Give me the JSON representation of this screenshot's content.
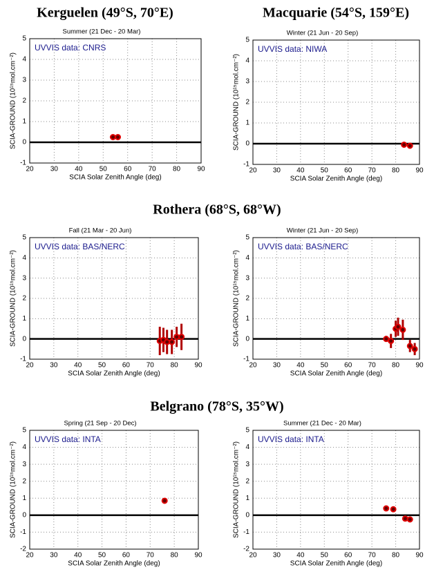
{
  "headings": [
    "Kerguelen (49°S, 70°E)",
    "Macquarie (54°S, 159°E)",
    "Rothera (68°S, 68°W)",
    "Belgrano (78°S, 35°W)"
  ],
  "chart_data": [
    {
      "type": "scatter",
      "title": "Summer (21 Dec - 20 Mar)",
      "annotation": "UVVIS data: CNRS",
      "xlabel": "SCIA Solar Zenith Angle (deg)",
      "ylabel": "SCIA-GROUND (10¹⁵mol.cm⁻²)",
      "xlim": [
        20,
        90
      ],
      "xticks": [
        20,
        30,
        40,
        50,
        60,
        70,
        80,
        90
      ],
      "ylim": [
        -1,
        5
      ],
      "yticks": [
        -1,
        0,
        1,
        2,
        3,
        4,
        5
      ],
      "grid": true,
      "reference_line": 0,
      "color": "#e00000",
      "x": [
        54,
        56
      ],
      "values": [
        0.25,
        0.25
      ],
      "errors": [
        0.1,
        0.1
      ]
    },
    {
      "type": "scatter",
      "title": "Winter (21 Jun - 20 Sep)",
      "annotation": "UVVIS data: NIWA",
      "xlabel": "SCIA Solar Zenith Angle (deg)",
      "ylabel": "SCIA-GROUND (10¹⁵mol.cm⁻²)",
      "xlim": [
        20,
        90
      ],
      "xticks": [
        20,
        30,
        40,
        50,
        60,
        70,
        80,
        90
      ],
      "ylim": [
        -1,
        5
      ],
      "yticks": [
        -1,
        0,
        1,
        2,
        3,
        4,
        5
      ],
      "grid": true,
      "reference_line": 0,
      "color": "#e00000",
      "x": [
        83.5,
        86
      ],
      "values": [
        -0.05,
        -0.1
      ],
      "errors": [
        0.05,
        0.05
      ]
    },
    {
      "type": "scatter",
      "title": "Fall (21 Mar - 20 Jun)",
      "annotation": "UVVIS data: BAS/NERC",
      "xlabel": "SCIA Solar Zenith Angle (deg)",
      "ylabel": "SCIA-GROUND (10¹⁵mol.cm⁻²)",
      "xlim": [
        20,
        90
      ],
      "xticks": [
        20,
        30,
        40,
        50,
        60,
        70,
        80,
        90
      ],
      "ylim": [
        -1,
        5
      ],
      "yticks": [
        -1,
        0,
        1,
        2,
        3,
        4,
        5
      ],
      "grid": true,
      "reference_line": 0,
      "color": "#e00000",
      "x": [
        74,
        75.5,
        77,
        79,
        81,
        83
      ],
      "values": [
        -0.1,
        -0.05,
        -0.15,
        -0.15,
        0.1,
        0.1
      ],
      "errors": [
        0.7,
        0.6,
        0.6,
        0.6,
        0.5,
        0.65
      ]
    },
    {
      "type": "scatter",
      "title": "Winter (21 Jun - 20 Sep)",
      "annotation": "UVVIS data: BAS/NERC",
      "xlabel": "SCIA Solar Zenith Angle (deg)",
      "ylabel": "SCIA-GROUND (10¹⁵mol.cm⁻²)",
      "xlim": [
        20,
        90
      ],
      "xticks": [
        20,
        30,
        40,
        50,
        60,
        70,
        80,
        90
      ],
      "ylim": [
        -1,
        5
      ],
      "yticks": [
        -1,
        0,
        1,
        2,
        3,
        4,
        5
      ],
      "grid": true,
      "reference_line": 0,
      "color": "#e00000",
      "x": [
        76,
        78,
        80,
        81,
        83,
        86,
        88
      ],
      "values": [
        0,
        -0.1,
        0.5,
        0.6,
        0.45,
        -0.35,
        -0.5
      ],
      "errors": [
        0.15,
        0.35,
        0.4,
        0.45,
        0.5,
        0.3,
        0.3
      ]
    },
    {
      "type": "scatter",
      "title": "Spring (21 Sep - 20 Dec)",
      "annotation": "UVVIS data: INTA",
      "xlabel": "SCIA Solar Zenith Angle (deg)",
      "ylabel": "SCIA-GROUND (10¹⁵mol.cm⁻²)",
      "xlim": [
        20,
        90
      ],
      "xticks": [
        20,
        30,
        40,
        50,
        60,
        70,
        80,
        90
      ],
      "ylim": [
        -2,
        5
      ],
      "yticks": [
        -2,
        -1,
        0,
        1,
        2,
        3,
        4,
        5
      ],
      "grid": true,
      "reference_line": 0,
      "color": "#e00000",
      "x": [
        76
      ],
      "values": [
        0.85
      ],
      "errors": [
        0.05
      ]
    },
    {
      "type": "scatter",
      "title": "Summer (21 Dec - 20 Mar)",
      "annotation": "UVVIS data: INTA",
      "xlabel": "SCIA Solar Zenith Angle (deg)",
      "ylabel": "SCIA-GROUND (10¹⁵mol.cm⁻²)",
      "xlim": [
        20,
        90
      ],
      "xticks": [
        20,
        30,
        40,
        50,
        60,
        70,
        80,
        90
      ],
      "ylim": [
        -2,
        5
      ],
      "yticks": [
        -2,
        -1,
        0,
        1,
        2,
        3,
        4,
        5
      ],
      "grid": true,
      "reference_line": 0,
      "color": "#e00000",
      "x": [
        76,
        79,
        84,
        86
      ],
      "values": [
        0.4,
        0.35,
        -0.2,
        -0.25
      ],
      "errors": [
        0.05,
        0.05,
        0.05,
        0.05
      ]
    }
  ]
}
